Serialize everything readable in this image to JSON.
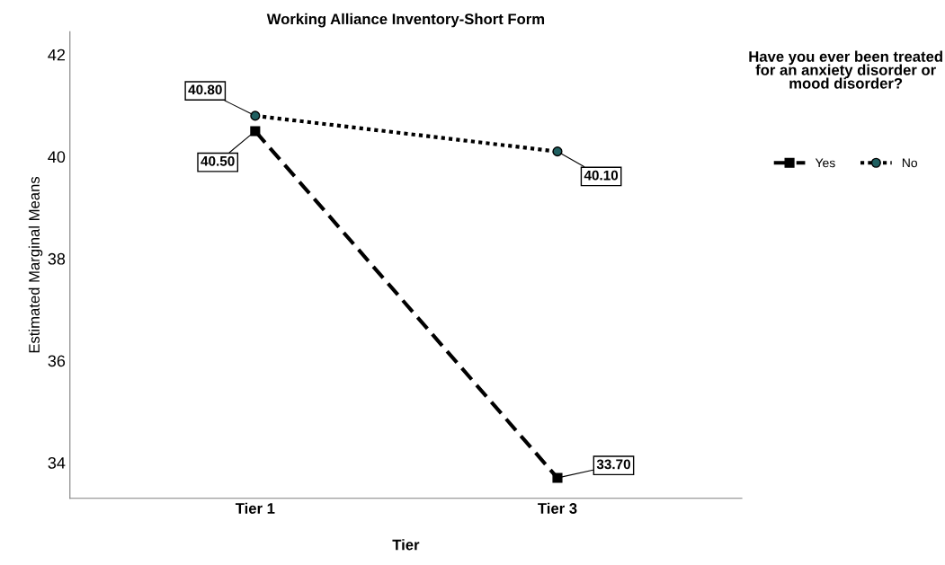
{
  "chart_data": {
    "type": "line",
    "title": "Working Alliance Inventory-Short Form",
    "xlabel": "Tier",
    "ylabel": "Estimated Marginal Means",
    "categories": [
      "Tier 1",
      "Tier 3"
    ],
    "series": [
      {
        "name": "Yes",
        "color": "#000000",
        "values": [
          40.5,
          33.7
        ],
        "value_labels": [
          "40.50",
          "33.70"
        ],
        "marker": "square",
        "line_style": "dashed"
      },
      {
        "name": "No",
        "color": "#000000",
        "values": [
          40.8,
          40.1
        ],
        "value_labels": [
          "40.80",
          "40.10"
        ],
        "marker": "circle",
        "line_style": "dotted"
      }
    ],
    "ylim": [
      33.3,
      42.45
    ],
    "yticks": [
      34,
      36,
      38,
      40,
      42
    ],
    "grid": false,
    "legend": "top right",
    "legend_title": "Have you ever been treated for an anxiety disorder or mood disorder?"
  }
}
